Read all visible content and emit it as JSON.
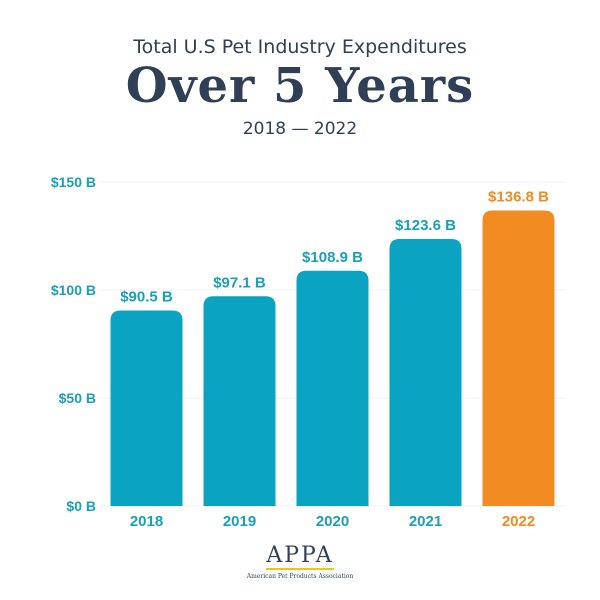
{
  "header": {
    "subtitle": "Total U.S Pet Industry Expenditures",
    "title": "Over 5 Years",
    "range": "2018 — 2022"
  },
  "logo": {
    "mark": "APPA",
    "name": "American Pet Products Association"
  },
  "colors": {
    "bar": "#0aa3c2",
    "highlight": "#f28c22",
    "axis_text": "#1a9fb8",
    "text": "#2f3f55"
  },
  "chart_data": {
    "type": "bar",
    "title": "Over 5 Years",
    "categories": [
      "2018",
      "2019",
      "2020",
      "2021",
      "2022"
    ],
    "values": [
      90.5,
      97.1,
      108.9,
      123.6,
      136.8
    ],
    "data_labels": [
      "$90.5 B",
      "$97.1 B",
      "$108.9 B",
      "$123.6 B",
      "$136.8 B"
    ],
    "highlight_category": "2022",
    "y_ticks": [
      0,
      50,
      100,
      150
    ],
    "y_tick_labels": [
      "$0 B",
      "$50 B",
      "$100 B",
      "$150 B"
    ],
    "ylim": [
      0,
      150
    ],
    "xlabel": "",
    "ylabel": "",
    "grid": true
  }
}
